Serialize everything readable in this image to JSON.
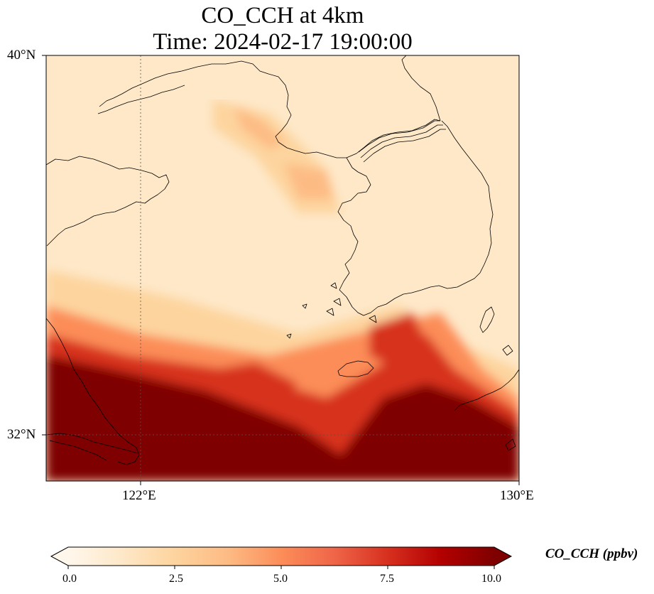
{
  "title_line1": "CO_CCH at 4km",
  "title_line2": "Time: 2024-02-17 19:00:00",
  "map": {
    "lon_range": [
      120,
      130
    ],
    "lat_range": [
      31,
      40
    ],
    "lat_ticks": [
      {
        "value": 40,
        "label": "40°N",
        "gridline": false
      },
      {
        "value": 32,
        "label": "32°N",
        "gridline": true
      }
    ],
    "lon_ticks": [
      {
        "value": 122,
        "label": "122°E",
        "gridline": true
      },
      {
        "value": 130,
        "label": "130°E",
        "gridline": false
      }
    ],
    "variable": "CO_CCH",
    "units": "ppbv",
    "level": "4km"
  },
  "colorbar": {
    "label": "CO_CCH (ppbv)",
    "min": 0.0,
    "max": 10.0,
    "extend": "both",
    "colormap": "OrRd",
    "ticks": [
      {
        "value": 0.0,
        "label": "0.0"
      },
      {
        "value": 2.5,
        "label": "2.5"
      },
      {
        "value": 5.0,
        "label": "5.0"
      },
      {
        "value": 7.5,
        "label": "7.5"
      },
      {
        "value": 10.0,
        "label": "10.0"
      }
    ],
    "colors": [
      "#fff7ec",
      "#fee8c8",
      "#fdd49e",
      "#fdbb84",
      "#fc8d59",
      "#ef6548",
      "#d7301f",
      "#b30000",
      "#7f0000"
    ]
  }
}
